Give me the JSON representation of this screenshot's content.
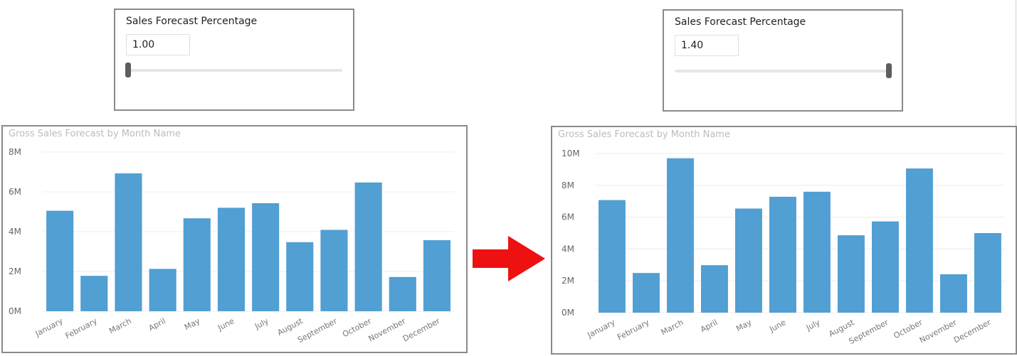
{
  "colors": {
    "bar": "#519fd3",
    "arrow": "#ee1111",
    "grid": "#ececec"
  },
  "left_panel": {
    "slicer": {
      "title": "Sales Forecast Percentage",
      "value": "1.00",
      "slider_fraction": 0.0
    },
    "chart_title": "Gross Sales Forecast by Month Name"
  },
  "right_panel": {
    "slicer": {
      "title": "Sales Forecast Percentage",
      "value": "1.40",
      "slider_fraction": 1.0
    },
    "chart_title": "Gross Sales Forecast by Month Name"
  },
  "arrow_icon": "right-arrow-icon",
  "chart_data": [
    {
      "type": "bar",
      "title": "Gross Sales Forecast by Month Name",
      "categories": [
        "January",
        "February",
        "March",
        "April",
        "May",
        "June",
        "July",
        "August",
        "September",
        "October",
        "November",
        "December"
      ],
      "values": [
        5.05,
        1.78,
        6.93,
        2.13,
        4.67,
        5.2,
        5.43,
        3.47,
        4.09,
        6.47,
        1.72,
        3.57
      ],
      "yticks": [
        "0M",
        "2M",
        "4M",
        "6M",
        "8M"
      ],
      "ylim": [
        0,
        8
      ],
      "unit": "M",
      "grid": true
    },
    {
      "type": "bar",
      "title": "Gross Sales Forecast by Month Name",
      "categories": [
        "January",
        "February",
        "March",
        "April",
        "May",
        "June",
        "July",
        "August",
        "September",
        "October",
        "November",
        "December"
      ],
      "values": [
        7.07,
        2.49,
        9.7,
        2.98,
        6.54,
        7.28,
        7.6,
        4.86,
        5.73,
        9.06,
        2.41,
        5.0
      ],
      "yticks": [
        "0M",
        "2M",
        "4M",
        "6M",
        "8M",
        "10M"
      ],
      "ylim": [
        0,
        10
      ],
      "unit": "M",
      "grid": true
    }
  ]
}
